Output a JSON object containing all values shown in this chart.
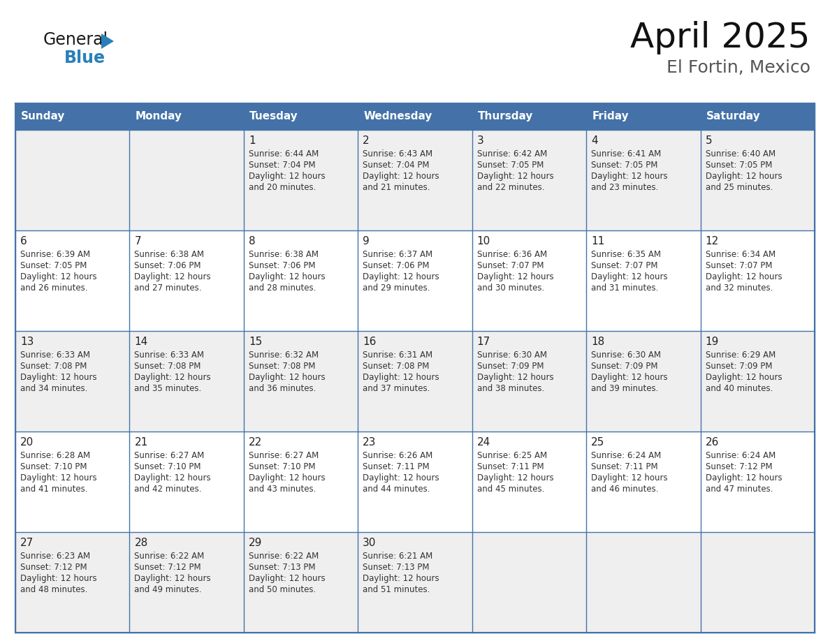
{
  "title": "April 2025",
  "subtitle": "El Fortin, Mexico",
  "header_color": "#4472A8",
  "header_text_color": "#FFFFFF",
  "row_bg_even": "#EFEFEF",
  "row_bg_odd": "#FFFFFF",
  "border_color": "#4472A8",
  "text_color": "#333333",
  "day_number_color": "#222222",
  "days_of_week": [
    "Sunday",
    "Monday",
    "Tuesday",
    "Wednesday",
    "Thursday",
    "Friday",
    "Saturday"
  ],
  "calendar_data": [
    [
      {
        "day": "",
        "sunrise": "",
        "sunset": "",
        "daylight_line1": "",
        "daylight_line2": ""
      },
      {
        "day": "",
        "sunrise": "",
        "sunset": "",
        "daylight_line1": "",
        "daylight_line2": ""
      },
      {
        "day": "1",
        "sunrise": "Sunrise: 6:44 AM",
        "sunset": "Sunset: 7:04 PM",
        "daylight_line1": "Daylight: 12 hours",
        "daylight_line2": "and 20 minutes."
      },
      {
        "day": "2",
        "sunrise": "Sunrise: 6:43 AM",
        "sunset": "Sunset: 7:04 PM",
        "daylight_line1": "Daylight: 12 hours",
        "daylight_line2": "and 21 minutes."
      },
      {
        "day": "3",
        "sunrise": "Sunrise: 6:42 AM",
        "sunset": "Sunset: 7:05 PM",
        "daylight_line1": "Daylight: 12 hours",
        "daylight_line2": "and 22 minutes."
      },
      {
        "day": "4",
        "sunrise": "Sunrise: 6:41 AM",
        "sunset": "Sunset: 7:05 PM",
        "daylight_line1": "Daylight: 12 hours",
        "daylight_line2": "and 23 minutes."
      },
      {
        "day": "5",
        "sunrise": "Sunrise: 6:40 AM",
        "sunset": "Sunset: 7:05 PM",
        "daylight_line1": "Daylight: 12 hours",
        "daylight_line2": "and 25 minutes."
      }
    ],
    [
      {
        "day": "6",
        "sunrise": "Sunrise: 6:39 AM",
        "sunset": "Sunset: 7:05 PM",
        "daylight_line1": "Daylight: 12 hours",
        "daylight_line2": "and 26 minutes."
      },
      {
        "day": "7",
        "sunrise": "Sunrise: 6:38 AM",
        "sunset": "Sunset: 7:06 PM",
        "daylight_line1": "Daylight: 12 hours",
        "daylight_line2": "and 27 minutes."
      },
      {
        "day": "8",
        "sunrise": "Sunrise: 6:38 AM",
        "sunset": "Sunset: 7:06 PM",
        "daylight_line1": "Daylight: 12 hours",
        "daylight_line2": "and 28 minutes."
      },
      {
        "day": "9",
        "sunrise": "Sunrise: 6:37 AM",
        "sunset": "Sunset: 7:06 PM",
        "daylight_line1": "Daylight: 12 hours",
        "daylight_line2": "and 29 minutes."
      },
      {
        "day": "10",
        "sunrise": "Sunrise: 6:36 AM",
        "sunset": "Sunset: 7:07 PM",
        "daylight_line1": "Daylight: 12 hours",
        "daylight_line2": "and 30 minutes."
      },
      {
        "day": "11",
        "sunrise": "Sunrise: 6:35 AM",
        "sunset": "Sunset: 7:07 PM",
        "daylight_line1": "Daylight: 12 hours",
        "daylight_line2": "and 31 minutes."
      },
      {
        "day": "12",
        "sunrise": "Sunrise: 6:34 AM",
        "sunset": "Sunset: 7:07 PM",
        "daylight_line1": "Daylight: 12 hours",
        "daylight_line2": "and 32 minutes."
      }
    ],
    [
      {
        "day": "13",
        "sunrise": "Sunrise: 6:33 AM",
        "sunset": "Sunset: 7:08 PM",
        "daylight_line1": "Daylight: 12 hours",
        "daylight_line2": "and 34 minutes."
      },
      {
        "day": "14",
        "sunrise": "Sunrise: 6:33 AM",
        "sunset": "Sunset: 7:08 PM",
        "daylight_line1": "Daylight: 12 hours",
        "daylight_line2": "and 35 minutes."
      },
      {
        "day": "15",
        "sunrise": "Sunrise: 6:32 AM",
        "sunset": "Sunset: 7:08 PM",
        "daylight_line1": "Daylight: 12 hours",
        "daylight_line2": "and 36 minutes."
      },
      {
        "day": "16",
        "sunrise": "Sunrise: 6:31 AM",
        "sunset": "Sunset: 7:08 PM",
        "daylight_line1": "Daylight: 12 hours",
        "daylight_line2": "and 37 minutes."
      },
      {
        "day": "17",
        "sunrise": "Sunrise: 6:30 AM",
        "sunset": "Sunset: 7:09 PM",
        "daylight_line1": "Daylight: 12 hours",
        "daylight_line2": "and 38 minutes."
      },
      {
        "day": "18",
        "sunrise": "Sunrise: 6:30 AM",
        "sunset": "Sunset: 7:09 PM",
        "daylight_line1": "Daylight: 12 hours",
        "daylight_line2": "and 39 minutes."
      },
      {
        "day": "19",
        "sunrise": "Sunrise: 6:29 AM",
        "sunset": "Sunset: 7:09 PM",
        "daylight_line1": "Daylight: 12 hours",
        "daylight_line2": "and 40 minutes."
      }
    ],
    [
      {
        "day": "20",
        "sunrise": "Sunrise: 6:28 AM",
        "sunset": "Sunset: 7:10 PM",
        "daylight_line1": "Daylight: 12 hours",
        "daylight_line2": "and 41 minutes."
      },
      {
        "day": "21",
        "sunrise": "Sunrise: 6:27 AM",
        "sunset": "Sunset: 7:10 PM",
        "daylight_line1": "Daylight: 12 hours",
        "daylight_line2": "and 42 minutes."
      },
      {
        "day": "22",
        "sunrise": "Sunrise: 6:27 AM",
        "sunset": "Sunset: 7:10 PM",
        "daylight_line1": "Daylight: 12 hours",
        "daylight_line2": "and 43 minutes."
      },
      {
        "day": "23",
        "sunrise": "Sunrise: 6:26 AM",
        "sunset": "Sunset: 7:11 PM",
        "daylight_line1": "Daylight: 12 hours",
        "daylight_line2": "and 44 minutes."
      },
      {
        "day": "24",
        "sunrise": "Sunrise: 6:25 AM",
        "sunset": "Sunset: 7:11 PM",
        "daylight_line1": "Daylight: 12 hours",
        "daylight_line2": "and 45 minutes."
      },
      {
        "day": "25",
        "sunrise": "Sunrise: 6:24 AM",
        "sunset": "Sunset: 7:11 PM",
        "daylight_line1": "Daylight: 12 hours",
        "daylight_line2": "and 46 minutes."
      },
      {
        "day": "26",
        "sunrise": "Sunrise: 6:24 AM",
        "sunset": "Sunset: 7:12 PM",
        "daylight_line1": "Daylight: 12 hours",
        "daylight_line2": "and 47 minutes."
      }
    ],
    [
      {
        "day": "27",
        "sunrise": "Sunrise: 6:23 AM",
        "sunset": "Sunset: 7:12 PM",
        "daylight_line1": "Daylight: 12 hours",
        "daylight_line2": "and 48 minutes."
      },
      {
        "day": "28",
        "sunrise": "Sunrise: 6:22 AM",
        "sunset": "Sunset: 7:12 PM",
        "daylight_line1": "Daylight: 12 hours",
        "daylight_line2": "and 49 minutes."
      },
      {
        "day": "29",
        "sunrise": "Sunrise: 6:22 AM",
        "sunset": "Sunset: 7:13 PM",
        "daylight_line1": "Daylight: 12 hours",
        "daylight_line2": "and 50 minutes."
      },
      {
        "day": "30",
        "sunrise": "Sunrise: 6:21 AM",
        "sunset": "Sunset: 7:13 PM",
        "daylight_line1": "Daylight: 12 hours",
        "daylight_line2": "and 51 minutes."
      },
      {
        "day": "",
        "sunrise": "",
        "sunset": "",
        "daylight_line1": "",
        "daylight_line2": ""
      },
      {
        "day": "",
        "sunrise": "",
        "sunset": "",
        "daylight_line1": "",
        "daylight_line2": ""
      },
      {
        "day": "",
        "sunrise": "",
        "sunset": "",
        "daylight_line1": "",
        "daylight_line2": ""
      }
    ]
  ],
  "logo_color_general": "#1a1a1a",
  "logo_color_blue": "#2980B9",
  "logo_triangle_color": "#2980B9",
  "title_fontsize": 36,
  "subtitle_fontsize": 18,
  "header_fontsize": 11,
  "day_number_fontsize": 11,
  "cell_text_fontsize": 8.5
}
